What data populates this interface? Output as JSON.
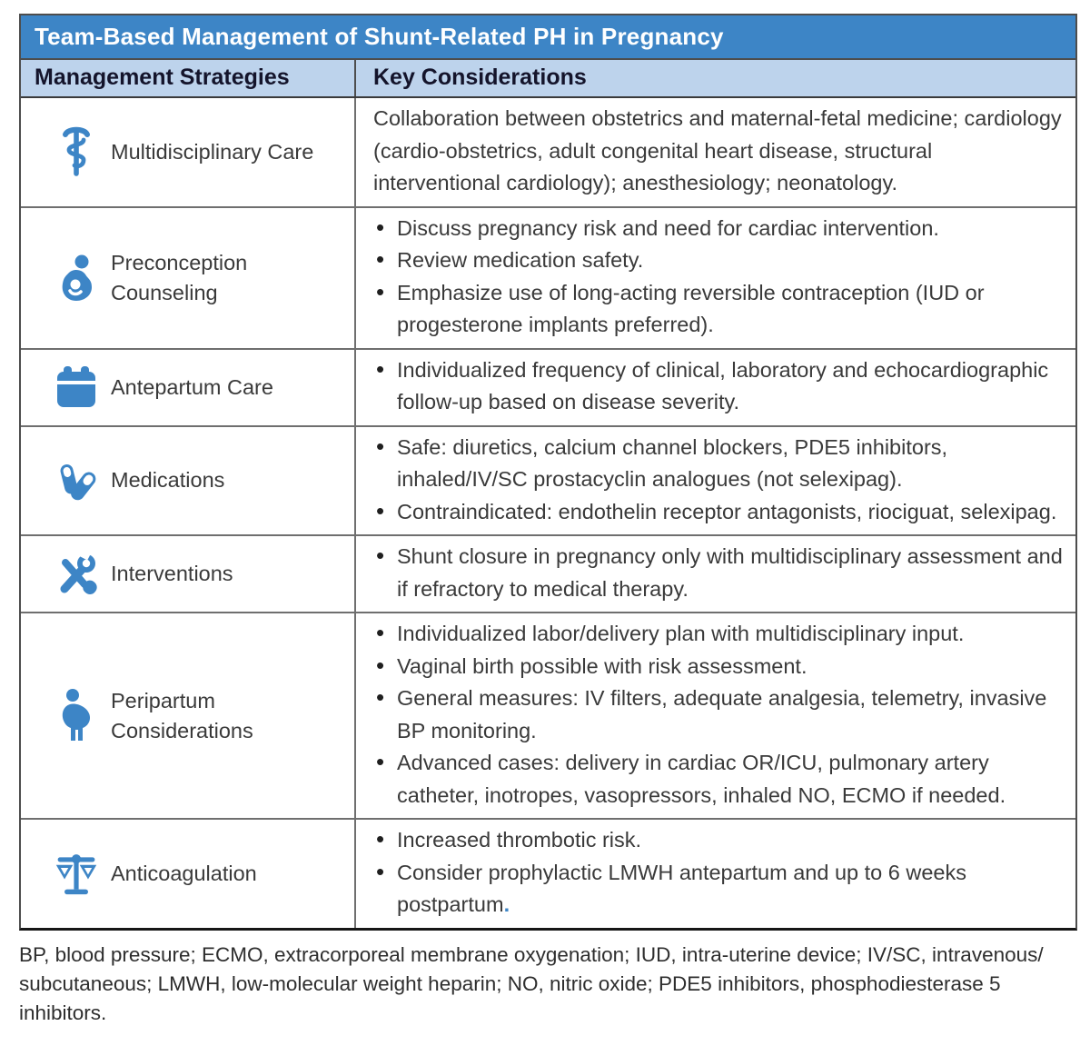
{
  "title": "Team-Based Management of Shunt-Related PH in Pregnancy",
  "columns": [
    "Management Strategies",
    "Key Considerations"
  ],
  "colors": {
    "title_bar_blue": "#3D85C6",
    "header_light_blue": "#BDD3EC",
    "icon_blue": "#3D85C6",
    "body_text": "#3A3A3A",
    "postpartum_period_blue": "#3D85C6"
  },
  "table": {
    "rows": [
      {
        "icon": "rod-of-asclepius-icon",
        "label": "Multidisciplinary Care",
        "paragraph": "Collaboration between obstetrics and maternal-fetal medicine; cardiology (cardio-obstetrics, adult congenital heart disease, structural interventional cardiology); anesthesiology; neonatology."
      },
      {
        "icon": "mother-child-icon",
        "label": "Preconception Counseling",
        "bullets": [
          "Discuss pregnancy risk and need for cardiac intervention.",
          "Review medication safety.",
          "Emphasize use of long-acting reversible contraception (IUD or progesterone implants preferred)."
        ]
      },
      {
        "icon": "calendar-icon",
        "label": "Antepartum Care",
        "bullets": [
          "Individualized frequency of clinical, laboratory and echocardiographic follow-up based on disease severity."
        ]
      },
      {
        "icon": "pills-icon",
        "label": "Medications",
        "bullets": [
          "Safe: diuretics, calcium channel blockers, PDE5 inhibitors, inhaled/IV/SC prostacyclin analogues (not selexipag).",
          "Contraindicated: endothelin receptor antagonists, riociguat, selexipag."
        ]
      },
      {
        "icon": "crossed-tools-icon",
        "label": "Interventions",
        "bullets": [
          "Shunt closure in pregnancy only with multidisciplinary assessment and if refractory to medical therapy."
        ]
      },
      {
        "icon": "pregnant-person-icon",
        "label": "Peripartum Considerations",
        "bullets": [
          "Individualized labor/delivery plan with multidisciplinary input.",
          "Vaginal birth possible with risk assessment.",
          "General measures: IV filters, adequate analgesia, telemetry, invasive BP monitoring.",
          "Advanced cases: delivery in cardiac OR/ICU, pulmonary artery catheter, inotropes, vasopressors, inhaled NO, ECMO if needed."
        ]
      },
      {
        "icon": "balance-scale-icon",
        "label": "Anticoagulation",
        "bullets": [
          "Increased thrombotic risk.",
          {
            "text": "Consider prophylactic LMWH antepartum and up to 6 weeks postpartum",
            "suffix": ".",
            "suffix_color": "#3D85C6"
          }
        ]
      }
    ]
  },
  "footnote": "BP, blood pressure; ECMO, extracorporeal membrane oxygenation; IUD, intra-uterine device; IV/SC, intravenous/ subcutaneous; LMWH, low-molecular weight heparin; NO, nitric oxide; PDE5 inhibitors, phosphodiesterase 5 inhibitors."
}
